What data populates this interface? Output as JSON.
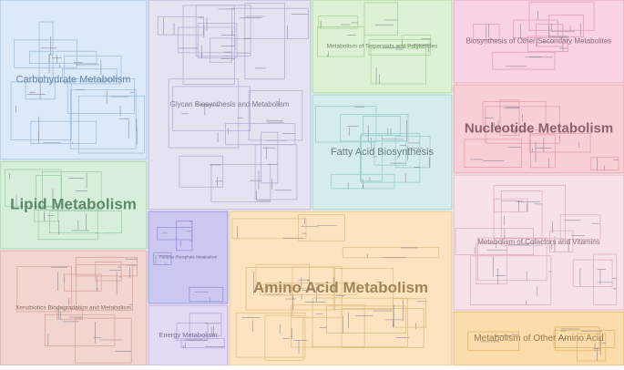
{
  "regions": [
    {
      "label": "Carbohydrate Metabolism"
    },
    {
      "label": "Lipid Metabolism"
    },
    {
      "label": "Xenobiotics Biodegradation and Metabolism"
    },
    {
      "label": "Glycan Biosynthesis and Metabolism"
    },
    {
      "label": "Pentose Phosphate Metabolism"
    },
    {
      "label": "Energy Metabolism"
    },
    {
      "label": "Amino Acid Metabolism"
    },
    {
      "label": "Metabolism of Terpenoids and Polyketides"
    },
    {
      "label": "Fatty Acid Biosynthesis"
    },
    {
      "label": "Biosynthesis of Other Secondary Metabolites"
    },
    {
      "label": "Nucleotide Metabolism"
    },
    {
      "label": "Metabolism of Cofactors and Vitamins"
    },
    {
      "label": "Metabolism of Other Amino Acid"
    }
  ]
}
